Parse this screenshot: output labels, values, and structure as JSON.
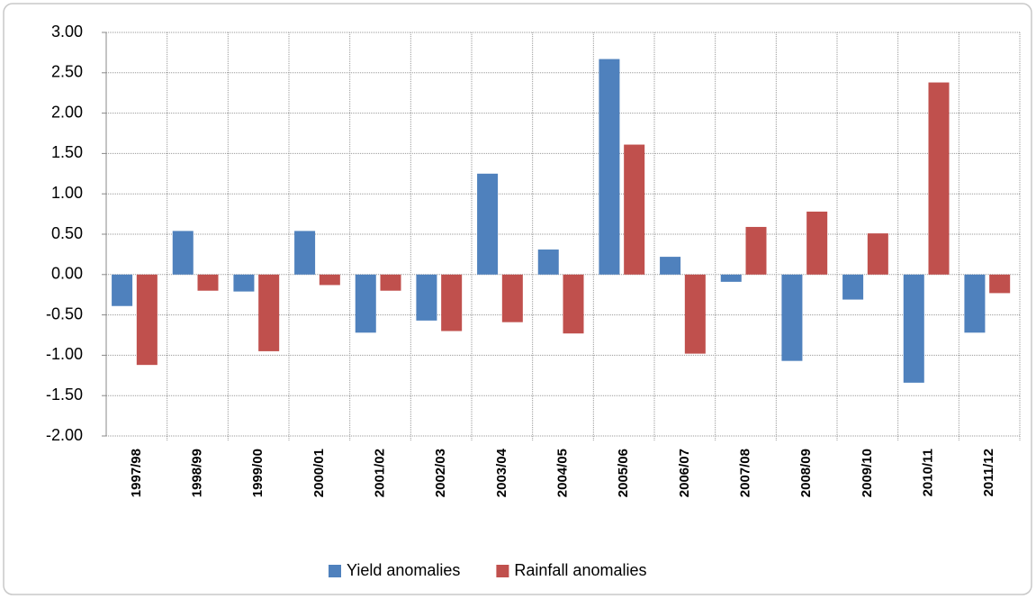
{
  "chart_data": {
    "type": "bar",
    "categories": [
      "1997/98",
      "1998/99",
      "1999/00",
      "2000/01",
      "2001/02",
      "2002/03",
      "2003/04",
      "2004/05",
      "2005/06",
      "2006/07",
      "2007/08",
      "2008/09",
      "2009/10",
      "2010/11",
      "2011/12"
    ],
    "series": [
      {
        "name": "Yield anomalies",
        "color": "#4f81bd",
        "values": [
          -0.39,
          0.54,
          -0.21,
          0.54,
          -0.72,
          -0.57,
          1.25,
          0.31,
          2.67,
          0.22,
          -0.09,
          -1.07,
          -0.31,
          -1.34,
          -0.72
        ]
      },
      {
        "name": "Rainfall anomalies",
        "color": "#c0504d",
        "values": [
          -1.12,
          -0.2,
          -0.95,
          -0.13,
          -0.2,
          -0.7,
          -0.59,
          -0.73,
          1.61,
          -0.98,
          0.59,
          0.78,
          0.51,
          2.38,
          -0.23
        ]
      }
    ],
    "ylim": [
      -2,
      3
    ],
    "yticks": [
      {
        "value": -2,
        "label": "-2.00"
      },
      {
        "value": -1.5,
        "label": "-1.50"
      },
      {
        "value": -1,
        "label": "-1.00"
      },
      {
        "value": -0.5,
        "label": "-0.50"
      },
      {
        "value": 0,
        "label": "0.00"
      },
      {
        "value": 0.5,
        "label": "0.50"
      },
      {
        "value": 1,
        "label": "1.00"
      },
      {
        "value": 1.5,
        "label": "1.50"
      },
      {
        "value": 2,
        "label": "2.00"
      },
      {
        "value": 2.5,
        "label": "2.50"
      },
      {
        "value": 3,
        "label": "3.00"
      }
    ],
    "grid": true,
    "legend": "bottom"
  }
}
